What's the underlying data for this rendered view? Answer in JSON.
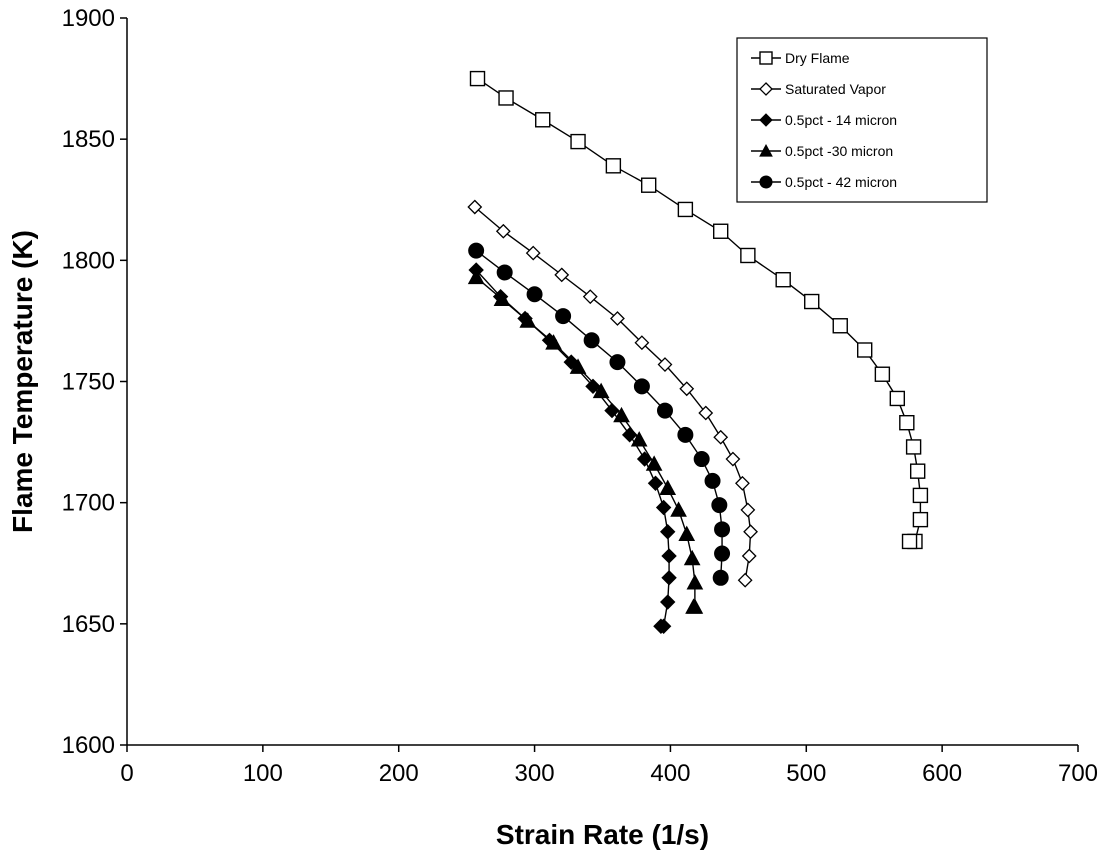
{
  "chart_data": {
    "type": "line",
    "title": "",
    "xlabel": "Strain Rate (1/s)",
    "ylabel": "Flame Temperature (K)",
    "xlim": [
      0,
      700
    ],
    "ylim": [
      1600,
      1900
    ],
    "xticks": [
      0,
      100,
      200,
      300,
      400,
      500,
      600,
      700
    ],
    "yticks": [
      1600,
      1650,
      1700,
      1750,
      1800,
      1850,
      1900
    ],
    "grid": false,
    "legend_position": "top-right",
    "series": [
      {
        "name": "Dry Flame",
        "marker": "open-square",
        "color": "#000000",
        "x": [
          258,
          279,
          306,
          332,
          358,
          384,
          411,
          437,
          457,
          483,
          504,
          525,
          543,
          556,
          567,
          574,
          579,
          582,
          584,
          584,
          580,
          576
        ],
        "y": [
          1875,
          1867,
          1858,
          1849,
          1839,
          1831,
          1821,
          1812,
          1802,
          1792,
          1783,
          1773,
          1763,
          1753,
          1743,
          1733,
          1723,
          1713,
          1703,
          1693,
          1684,
          1684
        ]
      },
      {
        "name": "Saturated Vapor",
        "marker": "open-diamond",
        "color": "#000000",
        "x": [
          256,
          277,
          299,
          320,
          341,
          361,
          379,
          396,
          412,
          426,
          437,
          446,
          453,
          457,
          459,
          458,
          455
        ],
        "y": [
          1822,
          1812,
          1803,
          1794,
          1785,
          1776,
          1766,
          1757,
          1747,
          1737,
          1727,
          1718,
          1708,
          1697,
          1688,
          1678,
          1668
        ]
      },
      {
        "name": "0.5pct - 14 micron",
        "marker": "filled-diamond",
        "color": "#000000",
        "x": [
          257,
          275,
          293,
          311,
          327,
          343,
          357,
          370,
          381,
          389,
          395,
          398,
          399,
          399,
          398,
          395,
          393
        ],
        "y": [
          1796,
          1785,
          1776,
          1767,
          1758,
          1748,
          1738,
          1728,
          1718,
          1708,
          1698,
          1688,
          1678,
          1669,
          1659,
          1649,
          1649
        ]
      },
      {
        "name": "0.5pct -30 micron",
        "marker": "filled-triangle",
        "color": "#000000",
        "x": [
          257,
          276,
          295,
          314,
          332,
          349,
          364,
          377,
          388,
          398,
          406,
          412,
          416,
          418,
          418,
          417
        ],
        "y": [
          1793,
          1784,
          1775,
          1766,
          1756,
          1746,
          1736,
          1726,
          1716,
          1706,
          1697,
          1687,
          1677,
          1667,
          1657,
          1657
        ]
      },
      {
        "name": "0.5pct - 42 micron",
        "marker": "filled-circle",
        "color": "#000000",
        "x": [
          257,
          278,
          300,
          321,
          342,
          361,
          379,
          396,
          411,
          423,
          431,
          436,
          438,
          438,
          437
        ],
        "y": [
          1804,
          1795,
          1786,
          1777,
          1767,
          1758,
          1748,
          1738,
          1728,
          1718,
          1709,
          1699,
          1689,
          1679,
          1669
        ]
      }
    ]
  }
}
